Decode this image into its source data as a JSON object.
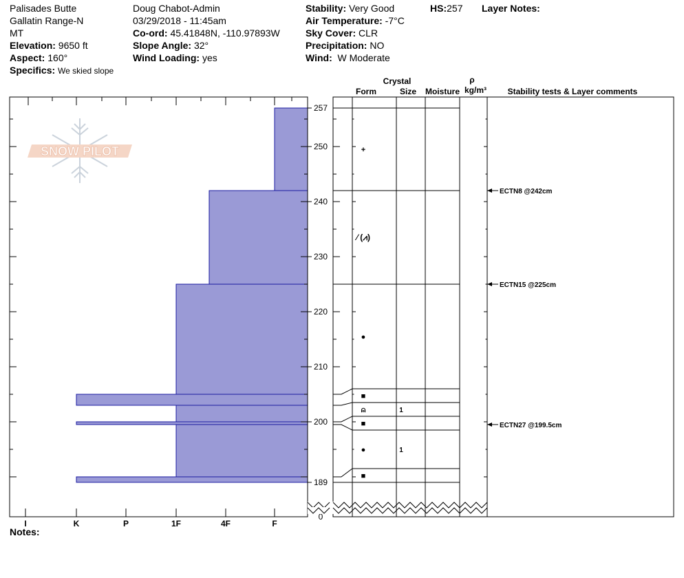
{
  "header": {
    "location": "Palisades Butte",
    "range": "Gallatin Range-N",
    "state": "MT",
    "elevation_label": "Elevation:",
    "elevation": "9650 ft",
    "aspect_label": "Aspect:",
    "aspect": "160°",
    "specifics_label": "Specifics:",
    "specifics": "We skied slope",
    "observer": "Doug Chabot-Admin",
    "datetime": "03/29/2018 - 11:45am",
    "coord_label": "Co-ord:",
    "coord": "45.41848N, -110.97893W",
    "slope_label": "Slope Angle:",
    "slope": "32°",
    "wind_loading_label": "Wind Loading:",
    "wind_loading": "yes",
    "stability_label": "Stability:",
    "stability": "Very Good",
    "air_temp_label": "Air Temperature:",
    "air_temp": "-7°C",
    "sky_label": "Sky Cover:",
    "sky": "CLR",
    "precip_label": "Precipitation:",
    "precip": "NO",
    "wind_label": "Wind:",
    "wind": "W Moderate",
    "hs_label": "HS:",
    "hs": "257",
    "layer_notes_label": "Layer Notes:"
  },
  "logo_text": "SNOW PILOT",
  "columns": {
    "crystal": "Crystal",
    "form": "Form",
    "size": "Size",
    "moisture": "Moisture",
    "rho": "ρ",
    "density_unit": "kg/m³",
    "stability": "Stability tests & Layer comments"
  },
  "notes_label": "Notes:",
  "chart_data": {
    "type": "bar",
    "orientation": "horizontal",
    "hardness_categories": [
      "I",
      "K",
      "P",
      "1F",
      "4F",
      "F"
    ],
    "axis_ticks_cm": [
      257,
      250,
      240,
      230,
      220,
      210,
      200,
      189,
      0
    ],
    "ylim": [
      189,
      257
    ],
    "hardness_profile": [
      {
        "top": 257,
        "bottom": 242,
        "hardness": "F"
      },
      {
        "top": 242,
        "bottom": 225,
        "hardness": "4F-"
      },
      {
        "top": 225,
        "bottom": 205,
        "hardness": "1F"
      },
      {
        "top": 205,
        "bottom": 203,
        "hardness": "K"
      },
      {
        "top": 203,
        "bottom": 200,
        "hardness": "1F"
      },
      {
        "top": 200,
        "bottom": 199.5,
        "hardness": "K"
      },
      {
        "top": 199.5,
        "bottom": 190,
        "hardness": "1F"
      },
      {
        "top": 190,
        "bottom": 189,
        "hardness": "K"
      }
    ],
    "layers": [
      {
        "top": 257,
        "bottom": 242,
        "form": "+",
        "size": ""
      },
      {
        "top": 242,
        "bottom": 225,
        "form": "⁄ (⩘)",
        "size": ""
      },
      {
        "top": 225,
        "bottom": 206,
        "form": "●",
        "size": ""
      },
      {
        "top": 206,
        "bottom": 203.5,
        "form": "■",
        "size": ""
      },
      {
        "top": 203.5,
        "bottom": 201,
        "form": "⍝",
        "size": "1"
      },
      {
        "top": 201,
        "bottom": 198.5,
        "form": "■",
        "size": ""
      },
      {
        "top": 198.5,
        "bottom": 191.5,
        "form": "●",
        "size": "1"
      },
      {
        "top": 191.5,
        "bottom": 189,
        "form": "■",
        "size": ""
      }
    ],
    "stability_tests": [
      {
        "depth": 242,
        "label": "ECTN8 @242cm"
      },
      {
        "depth": 225,
        "label": "ECTN15 @225cm"
      },
      {
        "depth": 199.5,
        "label": "ECTN27 @199.5cm"
      }
    ]
  }
}
